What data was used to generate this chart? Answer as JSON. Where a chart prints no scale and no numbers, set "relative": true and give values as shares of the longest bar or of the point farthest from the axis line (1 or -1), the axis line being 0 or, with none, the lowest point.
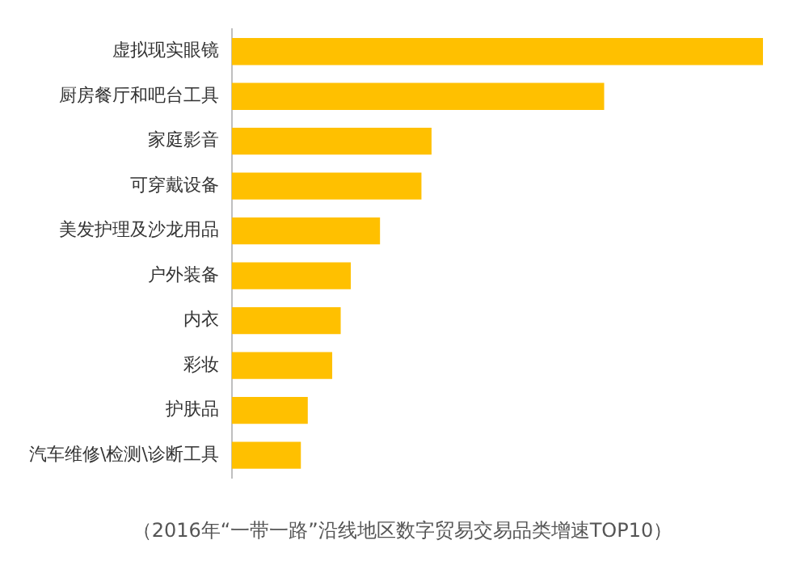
{
  "chart_data": {
    "type": "bar",
    "orientation": "horizontal",
    "relative": true,
    "categories": [
      "虚拟现实眼镜",
      "厨房餐厅和吧台工具",
      "家庭影音",
      "可穿戴设备",
      "美发护理及沙龙用品",
      "户外装备",
      "内衣",
      "彩妆",
      "护肤品",
      "汽车维修\\检测\\诊断工具"
    ],
    "values": [
      1,
      0.7,
      0.375,
      0.356,
      0.278,
      0.223,
      0.204,
      0.188,
      0.142,
      0.129
    ],
    "color": "#ffc000",
    "legend": false,
    "annotations": [
      "（2016年“一带一路”沿线地区数字贸易交易品类增速TOP10）"
    ]
  }
}
